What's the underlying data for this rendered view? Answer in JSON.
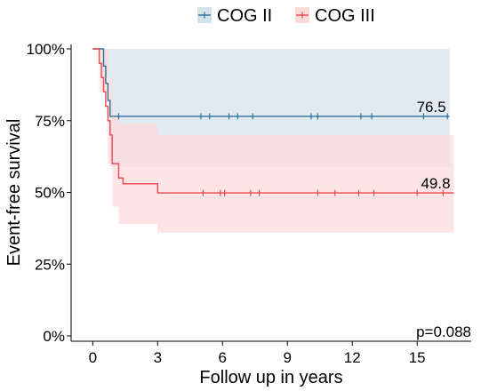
{
  "chart_data": {
    "type": "line",
    "subtype": "kaplan-meier",
    "xlabel": "Follow up in years",
    "ylabel": "Event-free survival",
    "xlim": [
      -1,
      17.5
    ],
    "ylim": [
      0,
      1
    ],
    "xticks": [
      0,
      3,
      6,
      9,
      12,
      15
    ],
    "yticks": [
      0,
      0.25,
      0.5,
      0.75,
      1.0
    ],
    "ytick_labels": [
      "0%",
      "25%",
      "50%",
      "75%",
      "100%"
    ],
    "grid": false,
    "legend_position": "top",
    "p_value_label": "p=0.088",
    "series": [
      {
        "name": "COG II",
        "color": "#2e6e9e",
        "band_color": "#d6e2ea",
        "end_label": "76.5",
        "steps": [
          [
            0,
            1.0
          ],
          [
            0.5,
            0.94
          ],
          [
            0.6,
            0.88
          ],
          [
            0.7,
            0.82
          ],
          [
            0.8,
            0.765
          ],
          [
            16.5,
            0.765
          ]
        ],
        "ci_steps": [
          [
            0,
            1.0,
            1.0
          ],
          [
            0.5,
            0.9,
            1.0
          ],
          [
            0.8,
            0.59,
            1.0
          ],
          [
            16.5,
            0.59,
            1.0
          ]
        ],
        "censor_x": [
          1.2,
          5.0,
          5.4,
          6.3,
          6.7,
          7.4,
          10.1,
          10.4,
          12.4,
          12.9,
          15.3,
          16.4
        ]
      },
      {
        "name": "COG III",
        "color": "#e8474f",
        "band_color": "#fddada",
        "end_label": "49.8",
        "steps": [
          [
            0,
            1.0
          ],
          [
            0.3,
            0.95
          ],
          [
            0.4,
            0.9
          ],
          [
            0.5,
            0.85
          ],
          [
            0.6,
            0.8
          ],
          [
            0.7,
            0.75
          ],
          [
            0.8,
            0.7
          ],
          [
            0.9,
            0.6
          ],
          [
            1.2,
            0.55
          ],
          [
            1.4,
            0.53
          ],
          [
            3.0,
            0.498
          ],
          [
            16.7,
            0.498
          ]
        ],
        "ci_steps": [
          [
            0,
            1.0,
            1.0
          ],
          [
            0.3,
            0.85,
            1.0
          ],
          [
            0.7,
            0.6,
            0.9
          ],
          [
            0.9,
            0.45,
            0.77
          ],
          [
            1.2,
            0.39,
            0.74
          ],
          [
            3.0,
            0.36,
            0.7
          ],
          [
            16.7,
            0.36,
            0.7
          ]
        ],
        "censor_x": [
          5.1,
          5.9,
          6.1,
          7.3,
          7.7,
          10.4,
          11.2,
          12.3,
          13.0,
          15.0,
          16.2
        ]
      }
    ]
  }
}
